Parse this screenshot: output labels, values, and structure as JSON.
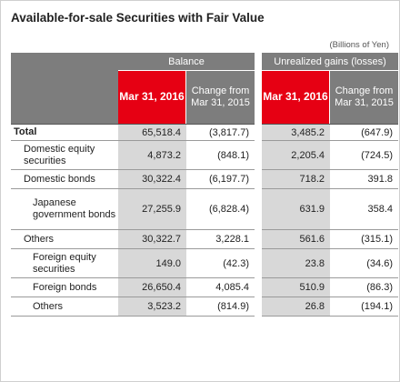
{
  "title": "Available-for-sale Securities with Fair Value",
  "unit": "(Billions of Yen)",
  "headers": {
    "balance": "Balance",
    "unrealized": "Unrealized gains (losses)",
    "mar_2016": "Mar 31, 2016",
    "change": "Change from Mar 31, 2015"
  },
  "rows": [
    {
      "label": "Total",
      "balance": "65,518.4",
      "balance_change": "(3,817.7)",
      "unrealized": "3,485.2",
      "unrealized_change": "(647.9)"
    },
    {
      "label": "Domestic equity securities",
      "balance": "4,873.2",
      "balance_change": "(848.1)",
      "unrealized": "2,205.4",
      "unrealized_change": "(724.5)"
    },
    {
      "label": "Domestic bonds",
      "balance": "30,322.4",
      "balance_change": "(6,197.7)",
      "unrealized": "718.2",
      "unrealized_change": "391.8"
    },
    {
      "label": "Japanese government bonds",
      "balance": "27,255.9",
      "balance_change": "(6,828.4)",
      "unrealized": "631.9",
      "unrealized_change": "358.4"
    },
    {
      "label": "Others",
      "balance": "30,322.7",
      "balance_change": "3,228.1",
      "unrealized": "561.6",
      "unrealized_change": "(315.1)"
    },
    {
      "label": "Foreign equity securities",
      "balance": "149.0",
      "balance_change": "(42.3)",
      "unrealized": "23.8",
      "unrealized_change": "(34.6)"
    },
    {
      "label": "Foreign bonds",
      "balance": "26,650.4",
      "balance_change": "4,085.4",
      "unrealized": "510.9",
      "unrealized_change": "(86.3)"
    },
    {
      "label": "Others",
      "balance": "3,523.2",
      "balance_change": "(814.9)",
      "unrealized": "26.8",
      "unrealized_change": "(194.1)"
    }
  ]
}
